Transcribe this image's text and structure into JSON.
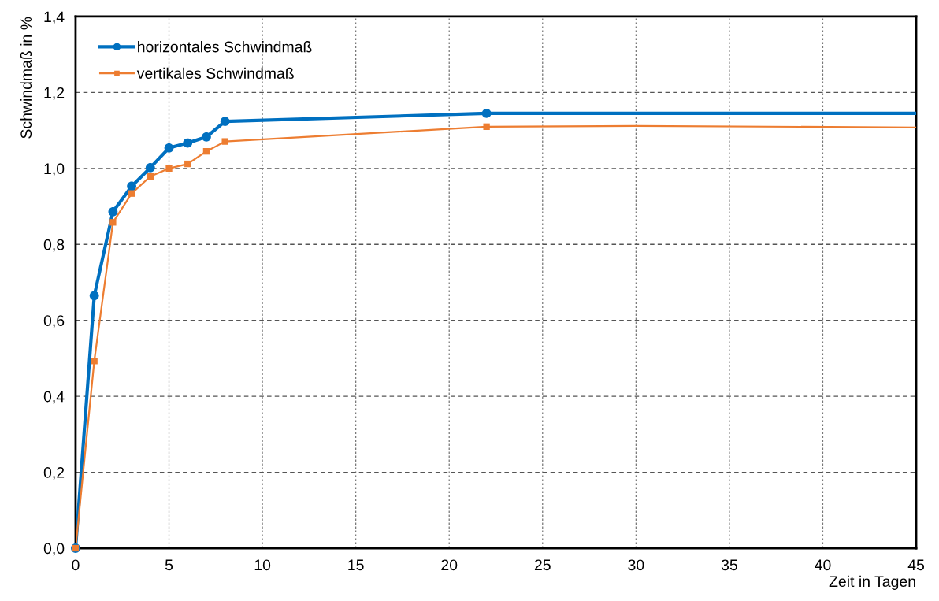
{
  "chart_data": {
    "type": "line",
    "xlabel": "Zeit in Tagen",
    "ylabel": "Schwindmaß in %",
    "xlim": [
      0,
      45
    ],
    "ylim": [
      0,
      1.4
    ],
    "xticks": [
      0,
      5,
      10,
      15,
      20,
      25,
      30,
      35,
      40,
      45
    ],
    "yticks": [
      {
        "value": 0,
        "label": "0,0"
      },
      {
        "value": 0.2,
        "label": "0,2"
      },
      {
        "value": 0.4,
        "label": "0,4"
      },
      {
        "value": 0.6,
        "label": "0,6"
      },
      {
        "value": 0.8,
        "label": "0,8"
      },
      {
        "value": 1.0,
        "label": "1,0"
      },
      {
        "value": 1.2,
        "label": "1,2"
      },
      {
        "value": 1.4,
        "label": "1,4"
      }
    ],
    "grid": true,
    "legend": "top left",
    "series": [
      {
        "name": "horizontales Schwindmaß",
        "color": "#0070c0",
        "marker": "circle",
        "x": [
          0,
          1,
          2,
          3,
          4,
          5,
          6,
          7,
          8,
          22
        ],
        "values": [
          0,
          0.665,
          0.886,
          0.953,
          1.002,
          1.054,
          1.067,
          1.083,
          1.124,
          1.145
        ]
      },
      {
        "name": "vertikales Schwindmaß",
        "color": "#ed7d31",
        "marker": "square",
        "x": [
          0,
          1,
          2,
          3,
          4,
          5,
          6,
          7,
          8,
          22
        ],
        "values": [
          0,
          0.493,
          0.858,
          0.934,
          0.979,
          1.0,
          1.012,
          1.045,
          1.071,
          1.11
        ]
      },
      {
        "color": "#0070c0",
        "marker": "none",
        "x": [
          22,
          45
        ],
        "values": [
          1.145,
          1.145
        ]
      },
      {
        "color": "#ed7d31",
        "marker": "none",
        "x": [
          22,
          30,
          45
        ],
        "values": [
          1.11,
          1.112,
          1.108
        ]
      }
    ]
  }
}
